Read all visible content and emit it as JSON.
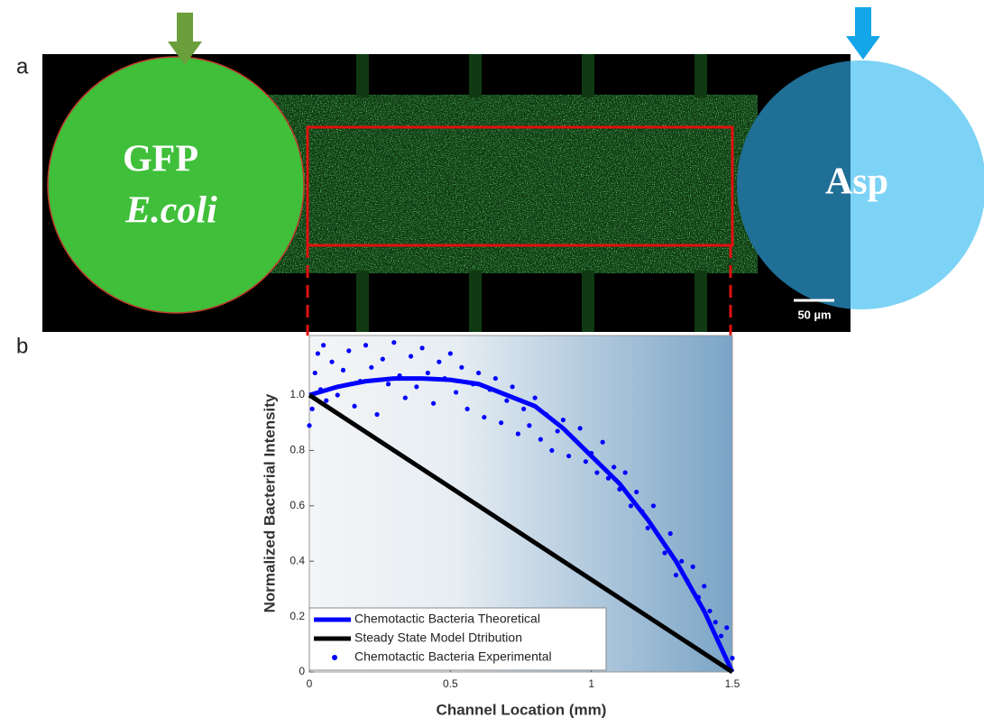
{
  "figure": {
    "panel_a": "a",
    "panel_b": "b",
    "left_reservoir_1": "GFP",
    "left_reservoir_2": "E.coli",
    "right_reservoir": "Asp",
    "scale_bar": "50 µm"
  },
  "chart_data": {
    "type": "line",
    "x_label": "Channel Location (mm)",
    "y_label": "Normalized Bacterial Intensity",
    "xlim": [
      0,
      1.5
    ],
    "ylim": [
      0,
      1.215
    ],
    "xticks": [
      0,
      0.5,
      1,
      1.5
    ],
    "yticks": [
      0,
      0.2,
      0.4,
      0.6,
      0.8,
      {
        "value": 1,
        "label": "1.0"
      }
    ],
    "legend": "lower left",
    "series": [
      {
        "name": "Chemotactic Bacteria Theoretical",
        "color": "#0000ff",
        "style": "line",
        "x": [
          0,
          0.1,
          0.2,
          0.3,
          0.4,
          0.5,
          0.6,
          0.7,
          0.8,
          0.9,
          1.0,
          1.1,
          1.2,
          1.3,
          1.4,
          1.5
        ],
        "values": [
          1.0,
          1.03,
          1.05,
          1.06,
          1.06,
          1.055,
          1.04,
          1.0,
          0.96,
          0.88,
          0.78,
          0.68,
          0.55,
          0.4,
          0.22,
          0.0
        ]
      },
      {
        "name": "Steady State Model Dtribution",
        "color": "#000000",
        "style": "line",
        "x": [
          0,
          1.5
        ],
        "values": [
          1.0,
          0.0
        ]
      },
      {
        "name": "Chemotactic Bacteria Experimental",
        "color": "#0000ff",
        "style": "markers",
        "x": [
          0,
          0.01,
          0.02,
          0.03,
          0.04,
          0.05,
          0.06,
          0.08,
          0.1,
          0.12,
          0.14,
          0.16,
          0.18,
          0.2,
          0.22,
          0.24,
          0.26,
          0.28,
          0.3,
          0.32,
          0.34,
          0.36,
          0.38,
          0.4,
          0.42,
          0.44,
          0.46,
          0.48,
          0.5,
          0.52,
          0.54,
          0.56,
          0.58,
          0.6,
          0.62,
          0.64,
          0.66,
          0.68,
          0.7,
          0.72,
          0.74,
          0.76,
          0.78,
          0.8,
          0.82,
          0.84,
          0.86,
          0.88,
          0.9,
          0.92,
          0.94,
          0.96,
          0.98,
          1.0,
          1.02,
          1.04,
          1.06,
          1.08,
          1.1,
          1.12,
          1.14,
          1.16,
          1.18,
          1.2,
          1.22,
          1.24,
          1.26,
          1.28,
          1.3,
          1.32,
          1.34,
          1.36,
          1.38,
          1.4,
          1.42,
          1.44,
          1.46,
          1.48,
          1.5
        ],
        "values": [
          0.89,
          0.95,
          1.08,
          1.15,
          1.02,
          1.18,
          0.98,
          1.12,
          1.0,
          1.09,
          1.16,
          0.96,
          1.05,
          1.18,
          1.1,
          0.93,
          1.13,
          1.04,
          1.19,
          1.07,
          0.99,
          1.14,
          1.03,
          1.17,
          1.08,
          0.97,
          1.12,
          1.06,
          1.15,
          1.01,
          1.1,
          0.95,
          1.04,
          1.08,
          0.92,
          1.02,
          1.06,
          0.9,
          0.98,
          1.03,
          0.86,
          0.95,
          0.89,
          0.99,
          0.84,
          0.93,
          0.8,
          0.87,
          0.91,
          0.78,
          0.84,
          0.88,
          0.76,
          0.79,
          0.72,
          0.83,
          0.7,
          0.74,
          0.66,
          0.72,
          0.6,
          0.65,
          0.58,
          0.52,
          0.6,
          0.49,
          0.43,
          0.5,
          0.35,
          0.4,
          0.33,
          0.38,
          0.27,
          0.31,
          0.22,
          0.18,
          0.13,
          0.16,
          0.05
        ]
      }
    ]
  }
}
